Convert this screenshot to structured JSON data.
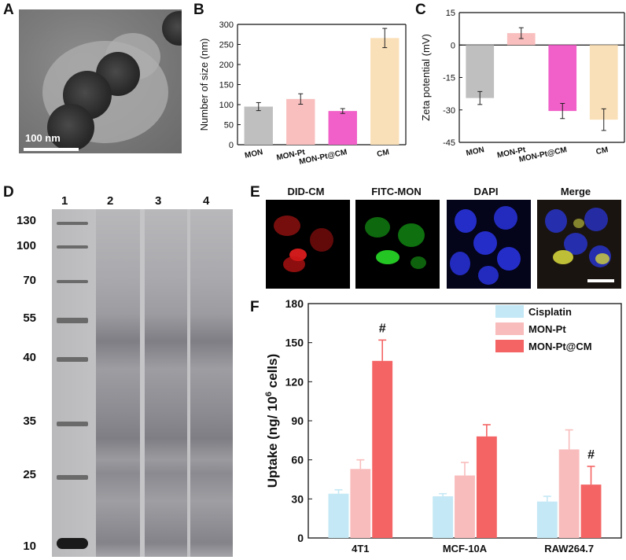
{
  "panels": {
    "A": "A",
    "B": "B",
    "C": "C",
    "D": "D",
    "E": "E",
    "F": "F"
  },
  "tem": {
    "scale_label": "100 nm"
  },
  "gel": {
    "lane_labels": [
      "1",
      "2",
      "3",
      "4"
    ],
    "marker_ticks": [
      "130",
      "100",
      "70",
      "55",
      "40",
      "35",
      "25",
      "10"
    ]
  },
  "fluorescence": {
    "labels": [
      "DID-CM",
      "FITC-MON",
      "DAPI",
      "Merge"
    ],
    "colors": [
      "#d01818",
      "#18c018",
      "#2030d8",
      "#c8c850"
    ]
  },
  "chart_data": [
    {
      "id": "B",
      "type": "bar",
      "categories": [
        "MON",
        "MON-Pt",
        "MON-Pt@CM",
        "CM"
      ],
      "values": [
        95,
        114,
        84,
        266
      ],
      "errors": [
        10,
        13,
        6,
        24
      ],
      "colors": [
        "#bfbfbf",
        "#f9bfbf",
        "#f060c8",
        "#fae0b8"
      ],
      "ylabel": "Number of size (nm)",
      "ylim": [
        0,
        300
      ],
      "yticks": [
        0,
        50,
        100,
        150,
        200,
        250,
        300
      ]
    },
    {
      "id": "C",
      "type": "bar",
      "categories": [
        "MON",
        "MON-Pt",
        "MON-Pt@CM",
        "CM"
      ],
      "values": [
        -24.5,
        5.5,
        -30.5,
        -34.5
      ],
      "errors": [
        3,
        2.5,
        3.5,
        5
      ],
      "colors": [
        "#bfbfbf",
        "#f9bfbf",
        "#f060c8",
        "#fae0b8"
      ],
      "ylabel": "Zeta potential (mV)",
      "ylim": [
        -45,
        15
      ],
      "yticks": [
        -45,
        -30,
        -15,
        0,
        15
      ]
    },
    {
      "id": "F",
      "type": "bar",
      "categories": [
        "4T1",
        "MCF-10A",
        "RAW264.7"
      ],
      "series": [
        {
          "name": "Cisplatin",
          "values": [
            34,
            32,
            28
          ],
          "errors": [
            3,
            2,
            4
          ],
          "color": "#c4e8f5"
        },
        {
          "name": "MON-Pt",
          "values": [
            53,
            48,
            68
          ],
          "errors": [
            7,
            10,
            15
          ],
          "color": "#f9bcbc"
        },
        {
          "name": "MON-Pt@CM",
          "values": [
            136,
            78,
            41
          ],
          "errors": [
            16,
            9,
            14
          ],
          "color": "#f46464"
        }
      ],
      "annotations": [
        "#",
        "#"
      ],
      "ylabel_main": "Uptake (ng/ 10",
      "ylabel_sup": "6",
      "ylabel_end": " cells)",
      "ylim": [
        0,
        180
      ],
      "yticks": [
        0,
        30,
        60,
        90,
        120,
        150,
        180
      ],
      "legend_position": "top-right"
    }
  ]
}
